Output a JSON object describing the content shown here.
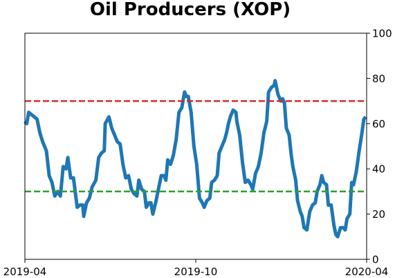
{
  "chart_data": {
    "type": "line",
    "title": "Oil Producers (XOP)",
    "x_ticks": [
      "2019-04",
      "2019-10",
      "2020-04"
    ],
    "x_range": [
      "2019-04-01",
      "2020-04-01"
    ],
    "y_ticks": [
      0,
      20,
      40,
      60,
      80,
      100
    ],
    "ylim": [
      0,
      100
    ],
    "y_axis_side": "right",
    "grid": false,
    "legend": "none",
    "reference_lines": [
      {
        "y": 70,
        "color": "#d62728",
        "style": "dashed"
      },
      {
        "y": 30,
        "color": "#2ca02c",
        "style": "dashed"
      }
    ],
    "series": [
      {
        "color": "#1f77b4",
        "points": [
          [
            "2019-04-01",
            61
          ],
          [
            "2019-04-03",
            60
          ],
          [
            "2019-04-05",
            65
          ],
          [
            "2019-04-08",
            64
          ],
          [
            "2019-04-11",
            63
          ],
          [
            "2019-04-14",
            62
          ],
          [
            "2019-04-17",
            56
          ],
          [
            "2019-04-20",
            52
          ],
          [
            "2019-04-24",
            48
          ],
          [
            "2019-04-27",
            37
          ],
          [
            "2019-04-30",
            34
          ],
          [
            "2019-05-03",
            28
          ],
          [
            "2019-05-06",
            30
          ],
          [
            "2019-05-09",
            28
          ],
          [
            "2019-05-12",
            41
          ],
          [
            "2019-05-15",
            40
          ],
          [
            "2019-05-17",
            45
          ],
          [
            "2019-05-20",
            36
          ],
          [
            "2019-05-23",
            36
          ],
          [
            "2019-05-27",
            23
          ],
          [
            "2019-05-30",
            24
          ],
          [
            "2019-06-02",
            24
          ],
          [
            "2019-06-03",
            19
          ],
          [
            "2019-06-06",
            25
          ],
          [
            "2019-06-09",
            27
          ],
          [
            "2019-06-12",
            32
          ],
          [
            "2019-06-16",
            35
          ],
          [
            "2019-06-19",
            45
          ],
          [
            "2019-06-22",
            47
          ],
          [
            "2019-06-25",
            48
          ],
          [
            "2019-06-26",
            60
          ],
          [
            "2019-06-30",
            63
          ],
          [
            "2019-07-03",
            58
          ],
          [
            "2019-07-06",
            55
          ],
          [
            "2019-07-09",
            52
          ],
          [
            "2019-07-12",
            51
          ],
          [
            "2019-07-15",
            42
          ],
          [
            "2019-07-18",
            36
          ],
          [
            "2019-07-21",
            37
          ],
          [
            "2019-07-24",
            31
          ],
          [
            "2019-07-27",
            29
          ],
          [
            "2019-07-30",
            28
          ],
          [
            "2019-08-01",
            35
          ],
          [
            "2019-08-04",
            31
          ],
          [
            "2019-08-07",
            30
          ],
          [
            "2019-08-09",
            23
          ],
          [
            "2019-08-12",
            25
          ],
          [
            "2019-08-14",
            25
          ],
          [
            "2019-08-16",
            20
          ],
          [
            "2019-08-19",
            25
          ],
          [
            "2019-08-22",
            31
          ],
          [
            "2019-08-25",
            37
          ],
          [
            "2019-08-28",
            37
          ],
          [
            "2019-08-30",
            35
          ],
          [
            "2019-09-01",
            44
          ],
          [
            "2019-09-04",
            42
          ],
          [
            "2019-09-07",
            46
          ],
          [
            "2019-09-10",
            53
          ],
          [
            "2019-09-13",
            65
          ],
          [
            "2019-09-16",
            67
          ],
          [
            "2019-09-19",
            74
          ],
          [
            "2019-09-21",
            72
          ],
          [
            "2019-09-23",
            72
          ],
          [
            "2019-09-26",
            65
          ],
          [
            "2019-09-29",
            50
          ],
          [
            "2019-10-02",
            42
          ],
          [
            "2019-10-05",
            27
          ],
          [
            "2019-10-08",
            25
          ],
          [
            "2019-10-10",
            23
          ],
          [
            "2019-10-13",
            26
          ],
          [
            "2019-10-16",
            27
          ],
          [
            "2019-10-18",
            34
          ],
          [
            "2019-10-21",
            35
          ],
          [
            "2019-10-24",
            37
          ],
          [
            "2019-10-26",
            47
          ],
          [
            "2019-10-29",
            50
          ],
          [
            "2019-11-01",
            53
          ],
          [
            "2019-11-03",
            56
          ],
          [
            "2019-11-05",
            60
          ],
          [
            "2019-11-07",
            63
          ],
          [
            "2019-11-10",
            66
          ],
          [
            "2019-11-13",
            65
          ],
          [
            "2019-11-14",
            61
          ],
          [
            "2019-11-17",
            55
          ],
          [
            "2019-11-20",
            43
          ],
          [
            "2019-11-23",
            34
          ],
          [
            "2019-11-26",
            35
          ],
          [
            "2019-11-29",
            33
          ],
          [
            "2019-12-01",
            31
          ],
          [
            "2019-12-04",
            38
          ],
          [
            "2019-12-07",
            41
          ],
          [
            "2019-12-10",
            47
          ],
          [
            "2019-12-13",
            56
          ],
          [
            "2019-12-16",
            61
          ],
          [
            "2019-12-18",
            74
          ],
          [
            "2019-12-21",
            76
          ],
          [
            "2019-12-24",
            77
          ],
          [
            "2019-12-25",
            79
          ],
          [
            "2019-12-28",
            73
          ],
          [
            "2019-12-31",
            70
          ],
          [
            "2020-01-02",
            71
          ],
          [
            "2020-01-04",
            69
          ],
          [
            "2020-01-06",
            58
          ],
          [
            "2020-01-09",
            55
          ],
          [
            "2020-01-11",
            47
          ],
          [
            "2020-01-13",
            41
          ],
          [
            "2020-01-16",
            35
          ],
          [
            "2020-01-18",
            26
          ],
          [
            "2020-01-21",
            21
          ],
          [
            "2020-01-23",
            19
          ],
          [
            "2020-01-25",
            14
          ],
          [
            "2020-01-28",
            13
          ],
          [
            "2020-01-31",
            21
          ],
          [
            "2020-02-03",
            24
          ],
          [
            "2020-02-06",
            25
          ],
          [
            "2020-02-08",
            30
          ],
          [
            "2020-02-11",
            33
          ],
          [
            "2020-02-13",
            37
          ],
          [
            "2020-02-15",
            34
          ],
          [
            "2020-02-18",
            33
          ],
          [
            "2020-02-20",
            24
          ],
          [
            "2020-02-23",
            24
          ],
          [
            "2020-02-26",
            15
          ],
          [
            "2020-02-28",
            11
          ],
          [
            "2020-03-01",
            10
          ],
          [
            "2020-03-04",
            14
          ],
          [
            "2020-03-07",
            14
          ],
          [
            "2020-03-09",
            13
          ],
          [
            "2020-03-11",
            18
          ],
          [
            "2020-03-14",
            20
          ],
          [
            "2020-03-16",
            34
          ],
          [
            "2020-03-18",
            33
          ],
          [
            "2020-03-21",
            39
          ],
          [
            "2020-03-24",
            48
          ],
          [
            "2020-03-27",
            56
          ],
          [
            "2020-03-29",
            62
          ],
          [
            "2020-03-31",
            63
          ]
        ]
      }
    ]
  }
}
